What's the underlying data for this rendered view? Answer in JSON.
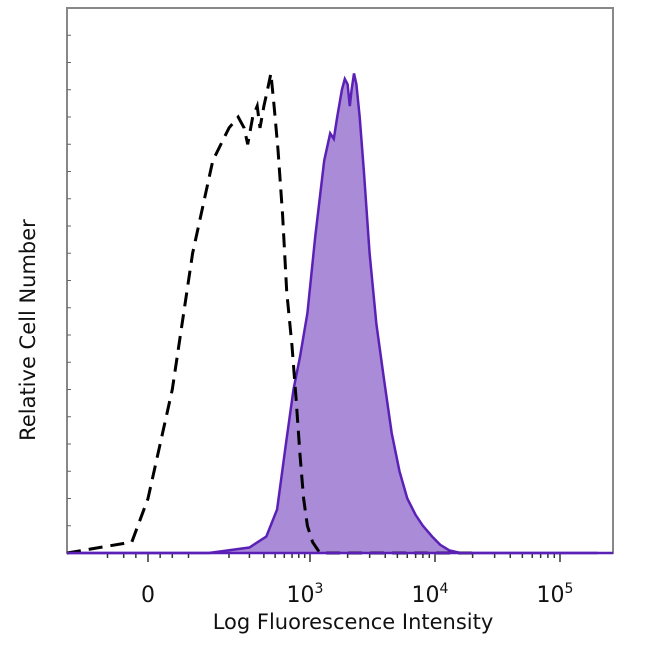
{
  "chart_data": {
    "type": "area",
    "xlabel": "Log Fluorescence Intensity",
    "ylabel": "Relative Cell Number",
    "x_scale": "biexponential",
    "x_ticks": [
      {
        "base": "0",
        "exp": ""
      },
      {
        "base": "10",
        "exp": "3"
      },
      {
        "base": "10",
        "exp": "4"
      },
      {
        "base": "10",
        "exp": "5"
      }
    ],
    "ylim": [
      0,
      100
    ],
    "colors": {
      "fill": "#a98bd7",
      "stroke": "#5b21b6",
      "control": "#000000",
      "frame": "#888888"
    },
    "series": [
      {
        "style": "dashed-outline",
        "points": [
          [
            -200,
            0
          ],
          [
            -40,
            2
          ],
          [
            0,
            10
          ],
          [
            60,
            30
          ],
          [
            110,
            55
          ],
          [
            160,
            72
          ],
          [
            200,
            78
          ],
          [
            240,
            80
          ],
          [
            270,
            78
          ],
          [
            290,
            75
          ],
          [
            320,
            80
          ],
          [
            350,
            82
          ],
          [
            370,
            78
          ],
          [
            400,
            82
          ],
          [
            430,
            85
          ],
          [
            460,
            88
          ],
          [
            490,
            82
          ],
          [
            530,
            74
          ],
          [
            580,
            62
          ],
          [
            630,
            48
          ],
          [
            700,
            38
          ],
          [
            760,
            28
          ],
          [
            820,
            18
          ],
          [
            880,
            10
          ],
          [
            950,
            5
          ],
          [
            1050,
            2
          ],
          [
            1200,
            0
          ],
          [
            2000,
            0
          ],
          [
            20000,
            0
          ]
        ]
      },
      {
        "style": "filled",
        "points": [
          [
            -200,
            0
          ],
          [
            150,
            0
          ],
          [
            300,
            1
          ],
          [
            420,
            3
          ],
          [
            520,
            8
          ],
          [
            620,
            20
          ],
          [
            720,
            30
          ],
          [
            820,
            36
          ],
          [
            950,
            44
          ],
          [
            1100,
            58
          ],
          [
            1300,
            72
          ],
          [
            1450,
            77
          ],
          [
            1550,
            76
          ],
          [
            1650,
            80
          ],
          [
            1800,
            85
          ],
          [
            1900,
            87
          ],
          [
            2000,
            86
          ],
          [
            2080,
            82
          ],
          [
            2150,
            85
          ],
          [
            2250,
            88
          ],
          [
            2350,
            86
          ],
          [
            2500,
            80
          ],
          [
            2700,
            70
          ],
          [
            3000,
            55
          ],
          [
            3400,
            42
          ],
          [
            3900,
            32
          ],
          [
            4500,
            22
          ],
          [
            5200,
            15
          ],
          [
            6000,
            10
          ],
          [
            7000,
            7
          ],
          [
            8000,
            5
          ],
          [
            9500,
            3
          ],
          [
            11000,
            1.5
          ],
          [
            13000,
            0.5
          ],
          [
            16000,
            0
          ],
          [
            60000,
            0
          ],
          [
            200000,
            0
          ]
        ]
      }
    ]
  }
}
